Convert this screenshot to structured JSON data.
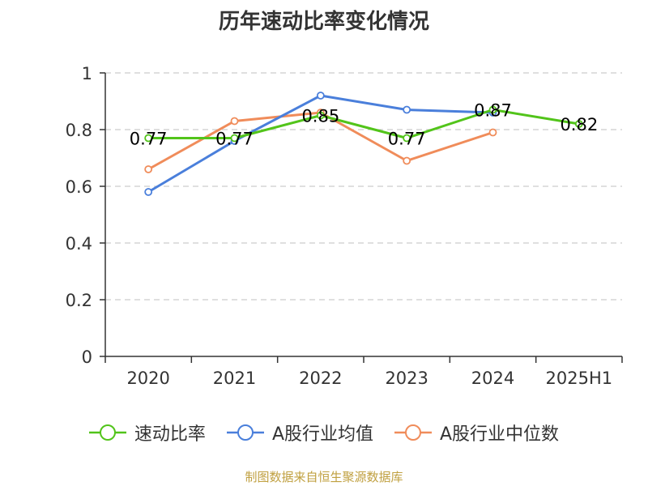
{
  "title": "历年速动比率变化情况",
  "source": "制图数据来自恒生聚源数据库",
  "colors": {
    "axis": "#333333",
    "grid": "#cccccc",
    "label": "#333333"
  },
  "chart_data": {
    "type": "line",
    "title": "历年速动比率变化情况",
    "categories": [
      "2020",
      "2021",
      "2022",
      "2023",
      "2024",
      "2025H1"
    ],
    "ylim": [
      0,
      1
    ],
    "yticks": [
      0,
      0.2,
      0.4,
      0.6,
      0.8,
      1
    ],
    "ytick_labels": [
      "0",
      "0.2",
      "0.4",
      "0.6",
      "0.8",
      "1"
    ],
    "grid": true,
    "legend_position": "bottom",
    "series": [
      {
        "name": "速动比率",
        "color": "#52c41a",
        "values": [
          0.77,
          0.77,
          0.85,
          0.77,
          0.87,
          0.82
        ],
        "data_labels": [
          "0.77",
          "0.77",
          "0.85",
          "0.77",
          "0.87",
          "0.82"
        ]
      },
      {
        "name": "A股行业均值",
        "color": "#4a7fdb",
        "values": [
          0.58,
          0.76,
          0.92,
          0.87,
          0.86,
          null
        ]
      },
      {
        "name": "A股行业中位数",
        "color": "#f08c5a",
        "values": [
          0.66,
          0.83,
          0.86,
          0.69,
          0.79,
          null
        ]
      }
    ]
  }
}
